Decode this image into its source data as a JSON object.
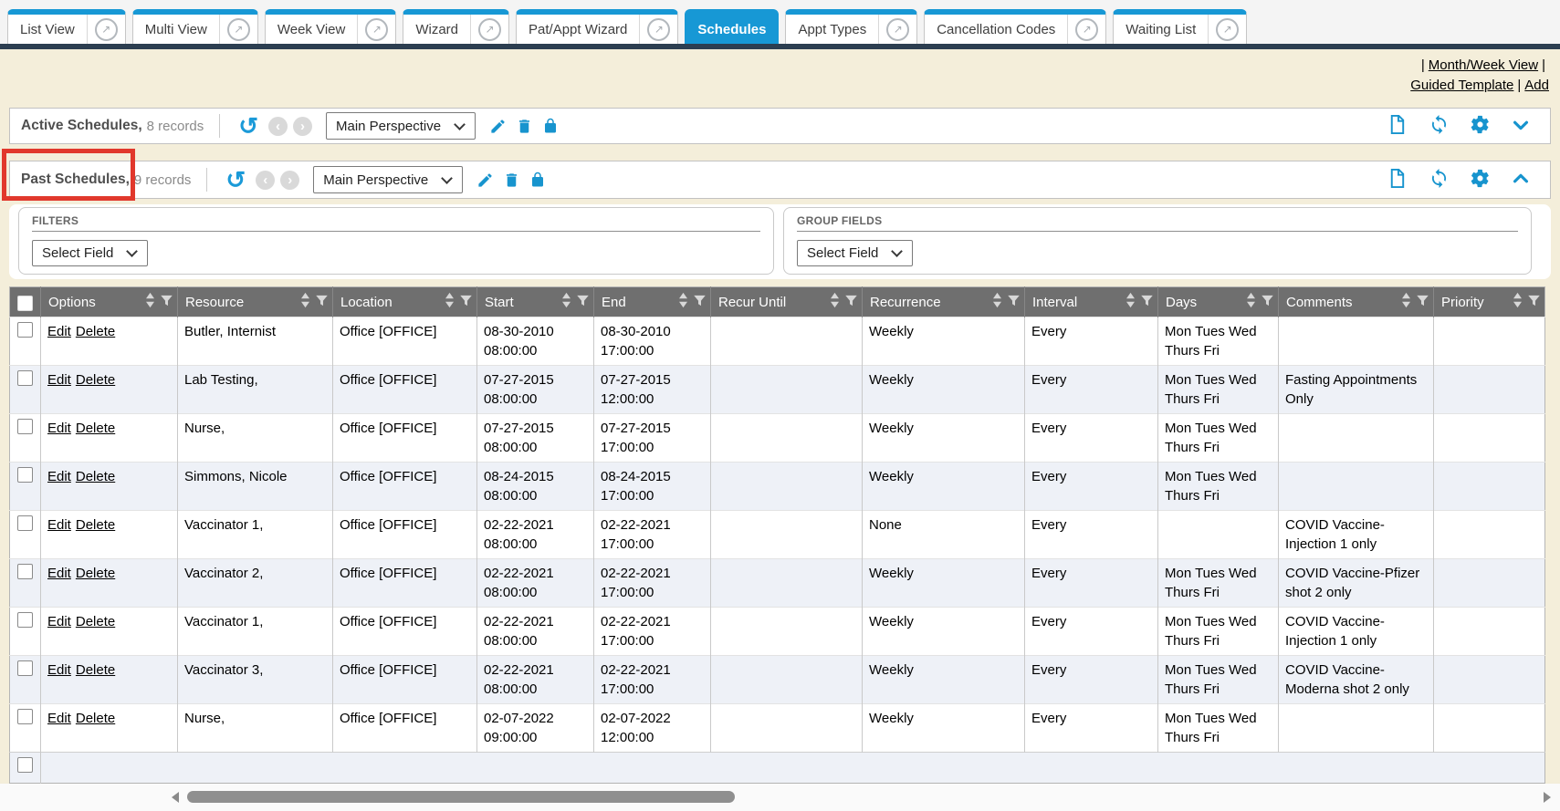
{
  "tabs": [
    {
      "label": "List View",
      "slug": "list-view",
      "active": false,
      "external": true
    },
    {
      "label": "Multi View",
      "slug": "multi-view",
      "active": false,
      "external": true
    },
    {
      "label": "Week View",
      "slug": "week-view",
      "active": false,
      "external": true
    },
    {
      "label": "Wizard",
      "slug": "wizard",
      "active": false,
      "external": true
    },
    {
      "label": "Pat/Appt Wizard",
      "slug": "pat-appt-wizard",
      "active": false,
      "external": true
    },
    {
      "label": "Schedules",
      "slug": "schedules",
      "active": true,
      "external": false
    },
    {
      "label": "Appt Types",
      "slug": "appt-types",
      "active": false,
      "external": true
    },
    {
      "label": "Cancellation Codes",
      "slug": "cancellation-codes",
      "active": false,
      "external": true
    },
    {
      "label": "Waiting List",
      "slug": "waiting-list",
      "active": false,
      "external": true
    }
  ],
  "quicklinks": {
    "separator": "|",
    "month_week_view": "Month/Week View",
    "guided_template": "Guided Template",
    "add": "Add"
  },
  "toolbars": {
    "active": {
      "title": "Active Schedules,",
      "count": "8 records",
      "perspective": "Main Perspective"
    },
    "past": {
      "title": "Past Schedules,",
      "count": "9 records",
      "perspective": "Main Perspective"
    }
  },
  "filters_panel": {
    "filters": {
      "label": "FILTERS",
      "select_value": "Select Field"
    },
    "group_fields": {
      "label": "GROUP FIELDS",
      "select_value": "Select Field"
    }
  },
  "table": {
    "columns": [
      "Options",
      "Resource",
      "Location",
      "Start",
      "End",
      "Recur Until",
      "Recurrence",
      "Interval",
      "Days",
      "Comments",
      "Priority"
    ],
    "options_labels": {
      "edit": "Edit",
      "delete": "Delete"
    },
    "rows": [
      {
        "resource": "Butler, Internist",
        "location": "Office [OFFICE]",
        "start": "08-30-2010 08:00:00",
        "end": "08-30-2010 17:00:00",
        "recur_until": "",
        "recurrence": "Weekly",
        "interval": "Every",
        "days": "Mon Tues Wed Thurs Fri",
        "comments": "",
        "priority": ""
      },
      {
        "resource": "Lab Testing,",
        "location": "Office [OFFICE]",
        "start": "07-27-2015 08:00:00",
        "end": "07-27-2015 12:00:00",
        "recur_until": "",
        "recurrence": "Weekly",
        "interval": "Every",
        "days": "Mon Tues Wed Thurs Fri",
        "comments": "Fasting Appointments Only",
        "priority": ""
      },
      {
        "resource": "Nurse,",
        "location": "Office [OFFICE]",
        "start": "07-27-2015 08:00:00",
        "end": "07-27-2015 17:00:00",
        "recur_until": "",
        "recurrence": "Weekly",
        "interval": "Every",
        "days": "Mon Tues Wed Thurs Fri",
        "comments": "",
        "priority": ""
      },
      {
        "resource": "Simmons, Nicole",
        "location": "Office [OFFICE]",
        "start": "08-24-2015 08:00:00",
        "end": "08-24-2015 17:00:00",
        "recur_until": "",
        "recurrence": "Weekly",
        "interval": "Every",
        "days": "Mon Tues Wed Thurs Fri",
        "comments": "",
        "priority": ""
      },
      {
        "resource": "Vaccinator 1,",
        "location": "Office [OFFICE]",
        "start": "02-22-2021 08:00:00",
        "end": "02-22-2021 17:00:00",
        "recur_until": "",
        "recurrence": "None",
        "interval": "Every",
        "days": "",
        "comments": "COVID Vaccine-Injection 1 only",
        "priority": ""
      },
      {
        "resource": "Vaccinator 2,",
        "location": "Office [OFFICE]",
        "start": "02-22-2021 08:00:00",
        "end": "02-22-2021 17:00:00",
        "recur_until": "",
        "recurrence": "Weekly",
        "interval": "Every",
        "days": "Mon Tues Wed Thurs Fri",
        "comments": "COVID Vaccine-Pfizer shot 2 only",
        "priority": ""
      },
      {
        "resource": "Vaccinator 1,",
        "location": "Office [OFFICE]",
        "start": "02-22-2021 08:00:00",
        "end": "02-22-2021 17:00:00",
        "recur_until": "",
        "recurrence": "Weekly",
        "interval": "Every",
        "days": "Mon Tues Wed Thurs Fri",
        "comments": "COVID Vaccine-Injection 1 only",
        "priority": ""
      },
      {
        "resource": "Vaccinator 3,",
        "location": "Office [OFFICE]",
        "start": "02-22-2021 08:00:00",
        "end": "02-22-2021 17:00:00",
        "recur_until": "",
        "recurrence": "Weekly",
        "interval": "Every",
        "days": "Mon Tues Wed Thurs Fri",
        "comments": "COVID Vaccine-Moderna shot 2 only",
        "priority": ""
      },
      {
        "resource": "Nurse,",
        "location": "Office [OFFICE]",
        "start": "02-07-2022 09:00:00",
        "end": "02-07-2022 12:00:00",
        "recur_until": "",
        "recurrence": "Weekly",
        "interval": "Every",
        "days": "Mon Tues Wed Thurs Fri",
        "comments": "",
        "priority": ""
      }
    ]
  },
  "icons": {
    "external_arrow": "↗",
    "undo_arrow": "↺",
    "prev_arrow": "‹",
    "next_arrow": "›"
  },
  "colors": {
    "accent_blue": "#1798d5",
    "icon_blue": "#1794ce",
    "header_gray": "#6f6f6f",
    "page_beige": "#f4eeda",
    "highlight_red": "#e1382c",
    "alt_row": "#eef1f7",
    "dark_stripe": "#2c3e50"
  }
}
